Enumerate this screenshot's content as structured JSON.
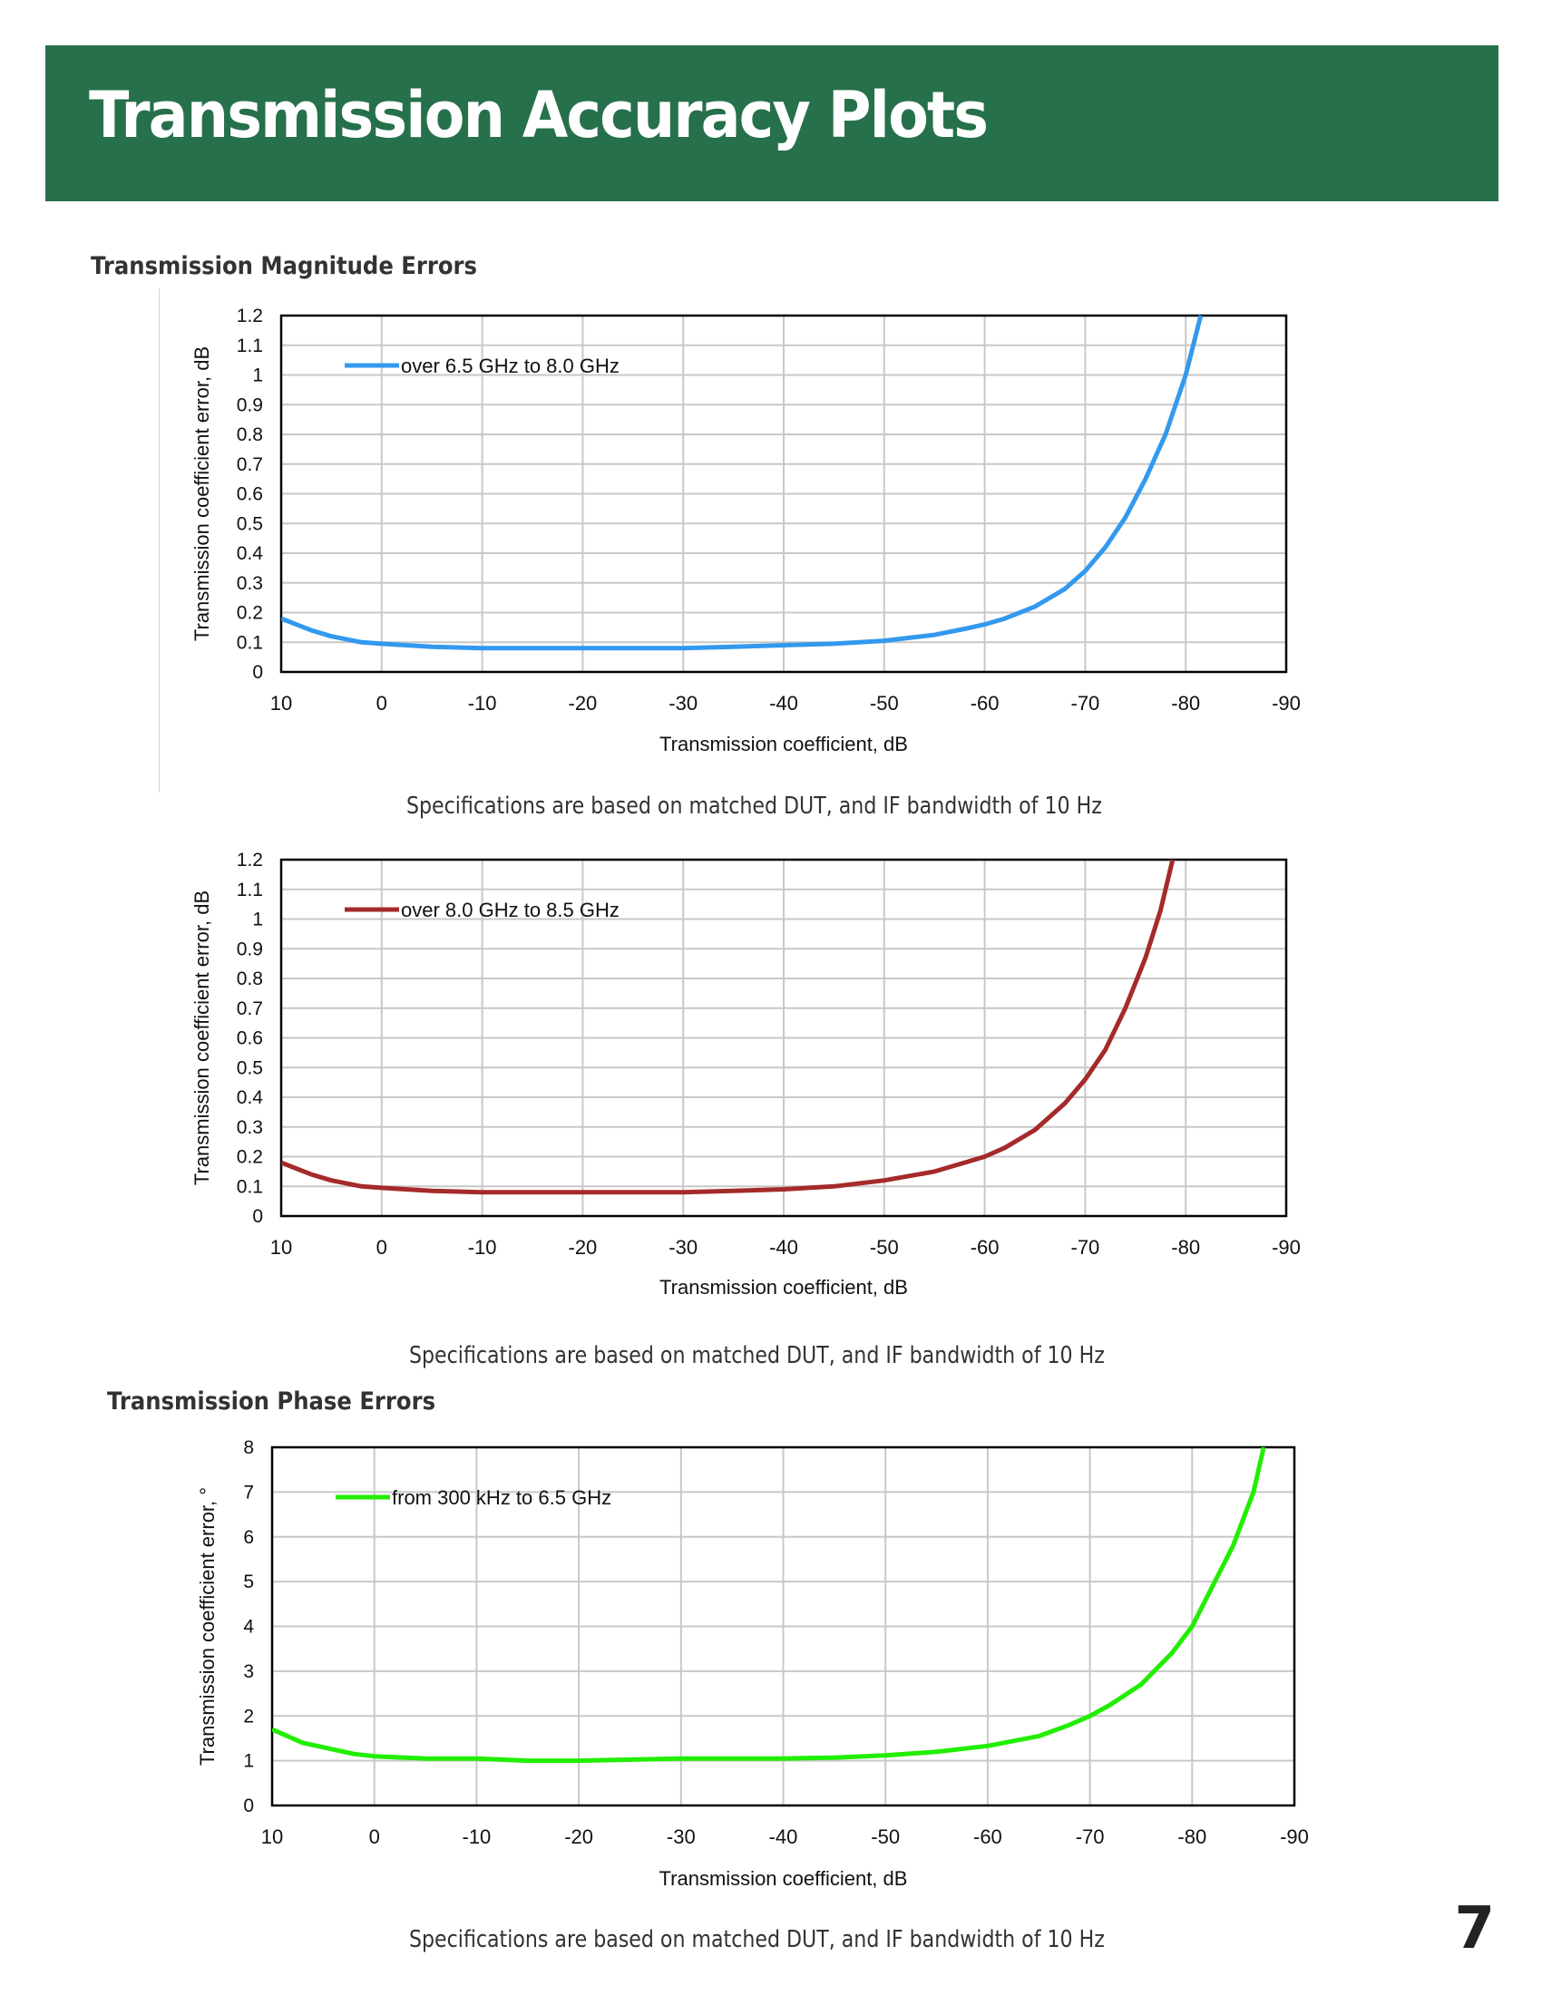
{
  "header": {
    "title": "Transmission Accuracy Plots"
  },
  "sections": {
    "magnitude": "Transmission Magnitude Errors",
    "phase": "Transmission Phase Errors"
  },
  "captions": [
    "Specifications are based on matched DUT, and IF bandwidth of 10 Hz",
    "Specifications are based on matched DUT, and IF bandwidth of 10 Hz",
    "Specifications are based on matched DUT, and IF bandwidth of 10 Hz"
  ],
  "page_number": "7",
  "chart_data": [
    {
      "type": "line",
      "xlabel": "Transmission coefficient, dB",
      "ylabel": "Transmission coefficient error, dB",
      "xlim": [
        10,
        -90
      ],
      "ylim": [
        0,
        1.2
      ],
      "x_ticks": [
        10,
        0,
        -10,
        -20,
        -30,
        -40,
        -50,
        -60,
        -70,
        -80,
        -90
      ],
      "y_ticks": [
        0,
        0.1,
        0.2,
        0.3,
        0.4,
        0.5,
        0.6,
        0.7,
        0.8,
        0.9,
        1,
        1.1,
        1.2
      ],
      "grid": true,
      "legend_position": "top-left",
      "series": [
        {
          "name": "over 6.5 GHz to 8.0 GHz",
          "color": "#3399ee",
          "x": [
            10,
            7,
            5,
            2,
            0,
            -5,
            -10,
            -20,
            -30,
            -35,
            -40,
            -45,
            -50,
            -55,
            -58,
            -60,
            -62,
            -65,
            -68,
            -70,
            -72,
            -74,
            -76,
            -78,
            -80,
            -81.5
          ],
          "y": [
            0.18,
            0.14,
            0.12,
            0.1,
            0.095,
            0.085,
            0.08,
            0.08,
            0.08,
            0.085,
            0.09,
            0.095,
            0.105,
            0.125,
            0.145,
            0.16,
            0.18,
            0.22,
            0.28,
            0.34,
            0.42,
            0.52,
            0.65,
            0.8,
            1.0,
            1.2
          ]
        }
      ]
    },
    {
      "type": "line",
      "xlabel": "Transmission coefficient, dB",
      "ylabel": "Transmission coefficient error, dB",
      "xlim": [
        10,
        -90
      ],
      "ylim": [
        0,
        1.2
      ],
      "x_ticks": [
        10,
        0,
        -10,
        -20,
        -30,
        -40,
        -50,
        -60,
        -70,
        -80,
        -90
      ],
      "y_ticks": [
        0,
        0.1,
        0.2,
        0.3,
        0.4,
        0.5,
        0.6,
        0.7,
        0.8,
        0.9,
        1,
        1.1,
        1.2
      ],
      "grid": true,
      "legend_position": "top-left",
      "series": [
        {
          "name": "over 8.0 GHz to 8.5 GHz",
          "color": "#a52a2a",
          "x": [
            10,
            7,
            5,
            2,
            0,
            -5,
            -10,
            -20,
            -30,
            -35,
            -40,
            -45,
            -50,
            -55,
            -58,
            -60,
            -62,
            -65,
            -68,
            -70,
            -72,
            -74,
            -76,
            -77.5,
            -78.7
          ],
          "y": [
            0.18,
            0.14,
            0.12,
            0.1,
            0.095,
            0.085,
            0.08,
            0.08,
            0.08,
            0.085,
            0.09,
            0.1,
            0.12,
            0.15,
            0.18,
            0.2,
            0.23,
            0.29,
            0.38,
            0.46,
            0.56,
            0.7,
            0.87,
            1.03,
            1.2
          ]
        }
      ]
    },
    {
      "type": "line",
      "xlabel": "Transmission coefficient, dB",
      "ylabel": "Transmission coefficient error, °",
      "xlim": [
        10,
        -90
      ],
      "ylim": [
        0,
        8
      ],
      "x_ticks": [
        10,
        0,
        -10,
        -20,
        -30,
        -40,
        -50,
        -60,
        -70,
        -80,
        -90
      ],
      "y_ticks": [
        0,
        1,
        2,
        3,
        4,
        5,
        6,
        7,
        8
      ],
      "grid": true,
      "legend_position": "top-left",
      "series": [
        {
          "name": "from 300 kHz to 6.5 GHz",
          "color": "#22ee00",
          "x": [
            10,
            7,
            5,
            2,
            0,
            -5,
            -10,
            -15,
            -20,
            -30,
            -40,
            -45,
            -50,
            -55,
            -60,
            -65,
            -68,
            -70,
            -72,
            -75,
            -78,
            -80,
            -82,
            -84,
            -86,
            -87
          ],
          "y": [
            1.7,
            1.4,
            1.3,
            1.15,
            1.1,
            1.05,
            1.05,
            1.0,
            1.0,
            1.05,
            1.05,
            1.07,
            1.12,
            1.2,
            1.33,
            1.55,
            1.8,
            2.0,
            2.25,
            2.7,
            3.4,
            4.0,
            4.9,
            5.8,
            7.0,
            8.0
          ]
        }
      ]
    }
  ]
}
